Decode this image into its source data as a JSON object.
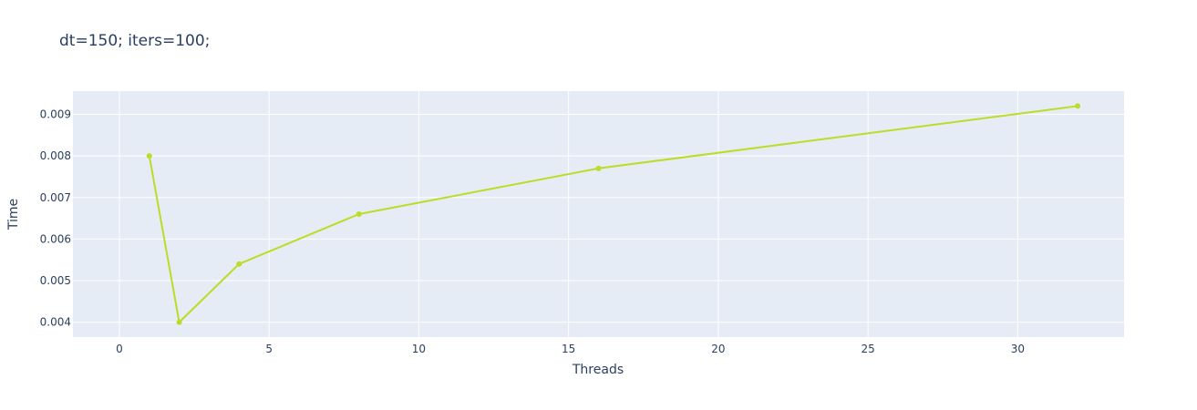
{
  "chart_data": {
    "type": "line",
    "title": "dt=150; iters=100;",
    "xlabel": "Threads",
    "ylabel": "Time",
    "xlim": [
      -1.55,
      33.55
    ],
    "ylim": [
      0.00364,
      0.00956
    ],
    "xticks": [
      0,
      5,
      10,
      15,
      20,
      25,
      30
    ],
    "xtick_labels": [
      "0",
      "5",
      "10",
      "15",
      "20",
      "25",
      "30"
    ],
    "yticks": [
      0.004,
      0.005,
      0.006,
      0.007,
      0.008,
      0.009
    ],
    "ytick_labels": [
      "0.004",
      "0.005",
      "0.006",
      "0.007",
      "0.008",
      "0.009"
    ],
    "grid": true,
    "series": [
      {
        "x": [
          1,
          2,
          4,
          8,
          16,
          32
        ],
        "y": [
          0.008,
          0.004,
          0.0054,
          0.0066,
          0.0077,
          0.0092
        ],
        "color": "#bcdc26",
        "mode": "lines+markers"
      }
    ],
    "colors": {
      "plot_background": "#e5ecf6",
      "grid": "#ffffff",
      "text": "#2a3f5f"
    }
  }
}
